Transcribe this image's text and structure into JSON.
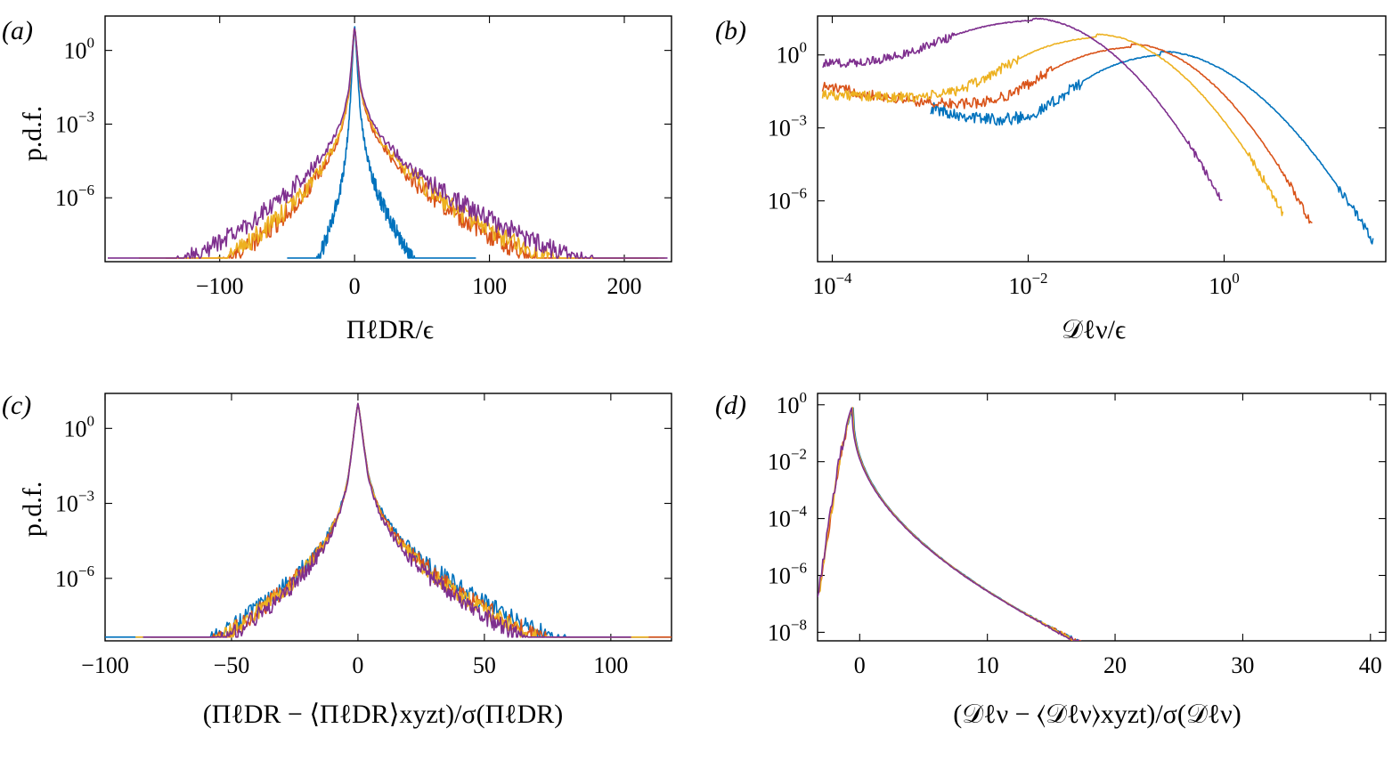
{
  "figure": {
    "ylabel_text": "p.d.f.",
    "series_colors": [
      "#0072BD",
      "#D95319",
      "#EDB120",
      "#7E2F8E"
    ]
  },
  "chart_data": [
    {
      "id": "a",
      "panel_label": "(a)",
      "type": "line",
      "xscale": "linear",
      "yscale": "log",
      "xlim": [
        -185,
        235
      ],
      "ylim_log10": [
        -8.6,
        1.4
      ],
      "xticks": [
        -100,
        0,
        100,
        200
      ],
      "xtick_labels": [
        "−100",
        "0",
        "100",
        "200"
      ],
      "yticks_exp": [
        0,
        -3,
        -6
      ],
      "ylabel": "p.d.f.",
      "xlabel": "ΠℓDR/ϵ",
      "series": [
        {
          "name": "series 1",
          "color": "#0072BD",
          "kind": "cusp",
          "peak_log10": 1.0,
          "tail_log10": -9,
          "left_extent": -50,
          "right_extent": 90,
          "scale_left": 5,
          "scale_right": 8,
          "noise_log10": 0.35
        },
        {
          "name": "series 2",
          "color": "#D95319",
          "kind": "cusp",
          "peak_log10": 1.0,
          "tail_log10": -9,
          "left_extent": -140,
          "right_extent": 225,
          "scale_left": 17,
          "scale_right": 25,
          "noise_log10": 0.4
        },
        {
          "name": "series 3",
          "color": "#EDB120",
          "kind": "cusp",
          "peak_log10": 1.0,
          "tail_log10": -9,
          "left_extent": -160,
          "right_extent": 230,
          "scale_left": 18,
          "scale_right": 27,
          "noise_log10": 0.4
        },
        {
          "name": "series 4",
          "color": "#7E2F8E",
          "kind": "cusp",
          "peak_log10": 1.0,
          "tail_log10": -9,
          "left_extent": -183,
          "right_extent": 232,
          "scale_left": 23,
          "scale_right": 31,
          "noise_log10": 0.4
        }
      ]
    },
    {
      "id": "b",
      "panel_label": "(b)",
      "type": "line",
      "xscale": "log",
      "yscale": "log",
      "xlim_log10": [
        -4.15,
        1.65
      ],
      "ylim_log10": [
        -8.5,
        1.6
      ],
      "xticks_exp": [
        -4,
        -2,
        0
      ],
      "xtick_labels": [
        "10−4",
        "10−2",
        "100"
      ],
      "yticks_exp": [
        0,
        -3,
        -6
      ],
      "ylabel": "",
      "xlabel": "𝒟ℓν/ϵ",
      "series": [
        {
          "name": "series 1",
          "color": "#0072BD",
          "kind": "hump",
          "x_start_log10": -3.0,
          "x_end_log10": 1.52,
          "floor_start": -2.2,
          "floor_end": -3.5,
          "peak_x_log10": -0.65,
          "peak_y_log10": 0.15,
          "end_y_log10": -7.7,
          "noise_log10": 0.25
        },
        {
          "name": "series 2",
          "color": "#D95319",
          "kind": "hump",
          "x_start_log10": -4.1,
          "x_end_log10": 0.9,
          "floor_start": -1.3,
          "floor_end": -2.6,
          "peak_x_log10": -0.95,
          "peak_y_log10": 0.45,
          "end_y_log10": -7.0,
          "noise_log10": 0.22
        },
        {
          "name": "series 3",
          "color": "#EDB120",
          "kind": "hump",
          "x_start_log10": -4.1,
          "x_end_log10": 0.6,
          "floor_start": -1.6,
          "floor_end": -2.1,
          "peak_x_log10": -1.3,
          "peak_y_log10": 0.85,
          "end_y_log10": -6.5,
          "noise_log10": 0.22
        },
        {
          "name": "series 4",
          "color": "#7E2F8E",
          "kind": "hump",
          "x_start_log10": -4.1,
          "x_end_log10": -0.02,
          "floor_start": -0.4,
          "floor_end": -0.5,
          "peak_x_log10": -1.95,
          "peak_y_log10": 1.5,
          "end_y_log10": -6.0,
          "noise_log10": 0.18
        }
      ]
    },
    {
      "id": "c",
      "panel_label": "(c)",
      "type": "line",
      "xscale": "linear",
      "yscale": "log",
      "xlim": [
        -100,
        124
      ],
      "ylim_log10": [
        -8.5,
        1.4
      ],
      "xticks": [
        -100,
        -50,
        0,
        50,
        100
      ],
      "xtick_labels": [
        "−100",
        "−50",
        "0",
        "50",
        "100"
      ],
      "yticks_exp": [
        0,
        -3,
        -6
      ],
      "ylabel": "p.d.f.",
      "xlabel": "(ΠℓDR − ⟨ΠℓDR⟩xyzt)/σ(ΠℓDR)",
      "series": [
        {
          "name": "series 1",
          "color": "#0072BD",
          "kind": "cusp",
          "peak_log10": 1.0,
          "tail_log10": -9,
          "left_extent": -100,
          "right_extent": 124,
          "scale_left": 11,
          "scale_right": 15,
          "noise_log10": 0.35
        },
        {
          "name": "series 2",
          "color": "#D95319",
          "kind": "cusp",
          "peak_log10": 1.0,
          "tail_log10": -9,
          "left_extent": -82,
          "right_extent": 124,
          "scale_left": 10.5,
          "scale_right": 14,
          "noise_log10": 0.35
        },
        {
          "name": "series 3",
          "color": "#EDB120",
          "kind": "cusp",
          "peak_log10": 1.0,
          "tail_log10": -9,
          "left_extent": -88,
          "right_extent": 115,
          "scale_left": 10.5,
          "scale_right": 13.5,
          "noise_log10": 0.35
        },
        {
          "name": "series 4",
          "color": "#7E2F8E",
          "kind": "cusp",
          "peak_log10": 1.0,
          "tail_log10": -9,
          "left_extent": -85,
          "right_extent": 108,
          "scale_left": 10,
          "scale_right": 12.5,
          "noise_log10": 0.35
        }
      ]
    },
    {
      "id": "d",
      "panel_label": "(d)",
      "type": "line",
      "xscale": "linear",
      "yscale": "log",
      "xlim": [
        -3.3,
        41.2
      ],
      "ylim_log10": [
        -8.3,
        0.4
      ],
      "xticks": [
        0,
        10,
        20,
        30,
        40
      ],
      "xtick_labels": [
        "0",
        "10",
        "20",
        "30",
        "40"
      ],
      "yticks_exp": [
        0,
        -2,
        -4,
        -6,
        -8
      ],
      "ylabel": "",
      "xlabel": "(𝒟ℓν − ⟨𝒟ℓν⟩xyzt)/σ(𝒟ℓν)",
      "series": [
        {
          "name": "series 1",
          "color": "#0072BD",
          "kind": "skew",
          "x_start": -1.2,
          "x_end": 40,
          "peak_x": -0.5,
          "peak_y_log10": -0.1,
          "noise_log10": 0.18
        },
        {
          "name": "series 2",
          "color": "#D95319",
          "kind": "skew",
          "x_start": -3.2,
          "x_end": 40.5,
          "peak_x": -0.55,
          "peak_y_log10": -0.1,
          "noise_log10": 0.2
        },
        {
          "name": "series 3",
          "color": "#EDB120",
          "kind": "skew",
          "x_start": -3.2,
          "x_end": 39.5,
          "peak_x": -0.55,
          "peak_y_log10": -0.1,
          "noise_log10": 0.2
        },
        {
          "name": "series 4",
          "color": "#7E2F8E",
          "kind": "skew",
          "x_start": -3.3,
          "x_end": 39.8,
          "peak_x": -0.6,
          "peak_y_log10": -0.1,
          "noise_log10": 0.2
        }
      ]
    }
  ]
}
